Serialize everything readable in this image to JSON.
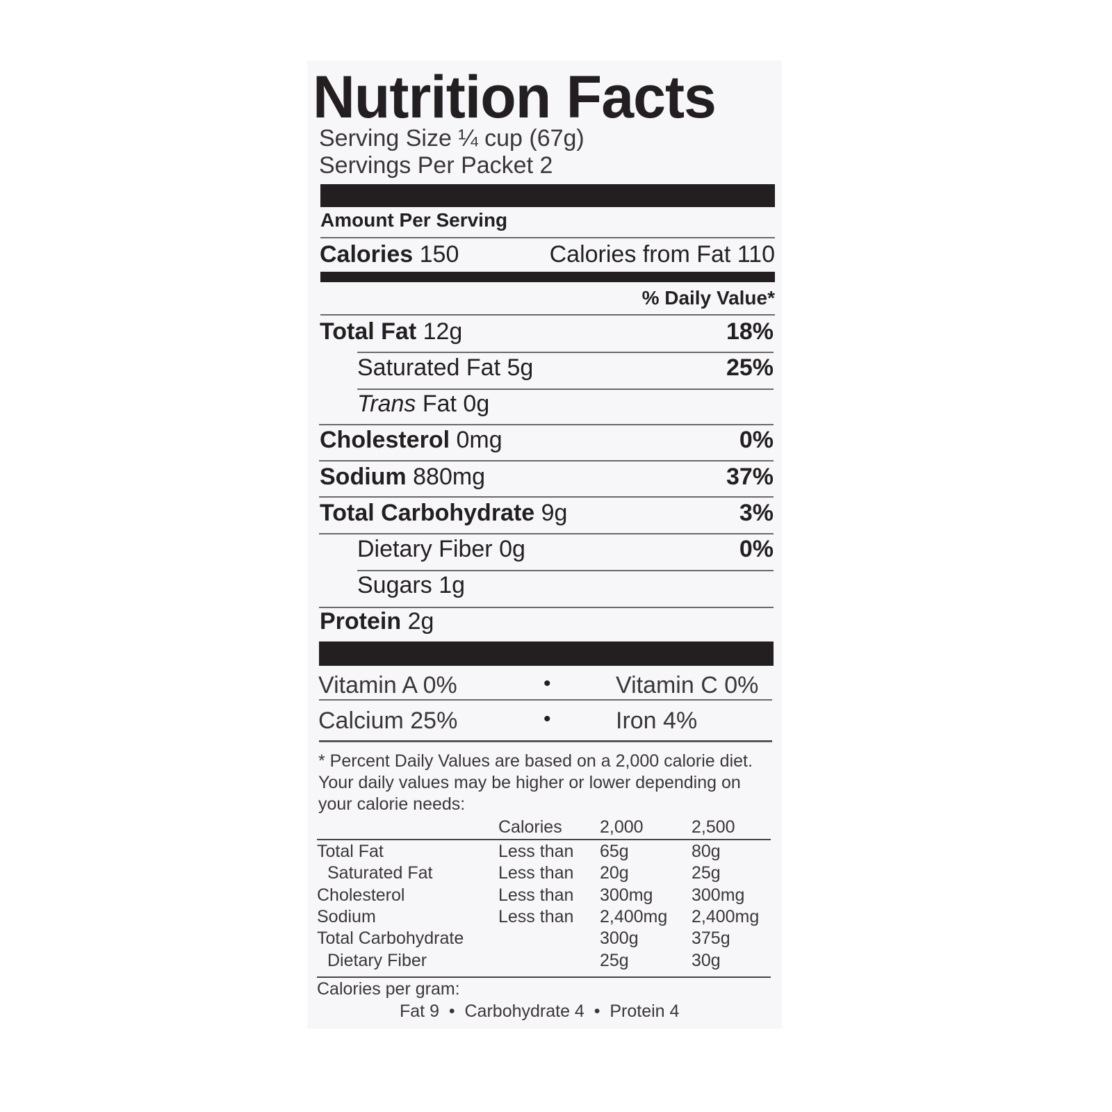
{
  "title": "Nutrition Facts",
  "serving_size": "Serving Size ¼ cup (67g)",
  "servings_per": "Servings Per Packet 2",
  "amount_per_serving": "Amount Per Serving",
  "calories": {
    "label": "Calories",
    "value": "150",
    "from_fat": "Calories from Fat 110"
  },
  "daily_value_header": "% Daily Value*",
  "nutrients": [
    {
      "label": "Total Fat",
      "amount": "12g",
      "dv": "18%"
    },
    {
      "label": "Saturated Fat",
      "amount": "5g",
      "dv": "25%"
    },
    {
      "label": "Trans",
      "label2": "Fat",
      "amount": "0g",
      "dv": ""
    },
    {
      "label": "Cholesterol",
      "amount": "0mg",
      "dv": "0%"
    },
    {
      "label": "Sodium",
      "amount": "880mg",
      "dv": "37%"
    },
    {
      "label": "Total Carbohydrate",
      "amount": "9g",
      "dv": "3%"
    },
    {
      "label": "Dietary Fiber",
      "amount": "0g",
      "dv": "0%"
    },
    {
      "label": "Sugars",
      "amount": "1g",
      "dv": ""
    },
    {
      "label": "Protein",
      "amount": "2g",
      "dv": ""
    }
  ],
  "vitamins": [
    {
      "left": "Vitamin A 0%",
      "right": "Vitamin C 0%"
    },
    {
      "left": "Calcium 25%",
      "right": "Iron 4%"
    }
  ],
  "bullet": "•",
  "footnote": "* Percent Daily Values are based on a 2,000 calorie diet. Your daily values may be higher or lower depending on your calorie needs:",
  "dv_table": {
    "header": [
      "",
      "Calories",
      "2,000",
      "2,500"
    ],
    "rows": [
      [
        "Total Fat",
        "Less than",
        "65g",
        "80g"
      ],
      [
        "Saturated Fat",
        "Less than",
        "20g",
        "25g"
      ],
      [
        "Cholesterol",
        "Less than",
        "300mg",
        "300mg"
      ],
      [
        "Sodium",
        "Less than",
        "2,400mg",
        "2,400mg"
      ],
      [
        "Total Carbohydrate",
        "",
        "300g",
        "375g"
      ],
      [
        "Dietary Fiber",
        "",
        "25g",
        "30g"
      ]
    ]
  },
  "calories_per_gram": "Calories per gram:",
  "calories_per_gram_values": "Fat 9  •  Carbohydrate 4  •  Protein 4"
}
